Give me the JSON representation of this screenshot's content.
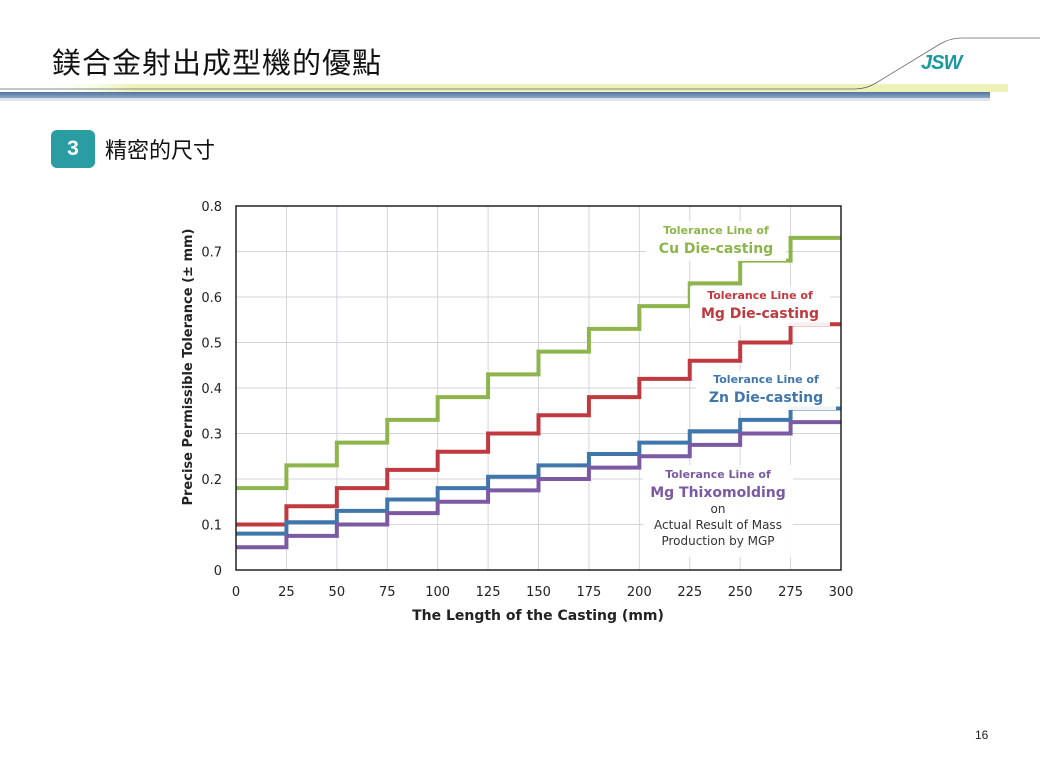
{
  "slide": {
    "title": "鎂合金射出成型機的優點",
    "logo_text": "JSW",
    "section_number": "3",
    "section_label": "精密的尺寸",
    "page_number": "16",
    "colors": {
      "accent": "#2a9da2",
      "header_bar": "#5b7ea8",
      "header_glow": "#eef2b8"
    }
  },
  "chart_data": {
    "type": "line",
    "step": true,
    "title": "",
    "xlabel": "The Length of the Casting (mm)",
    "ylabel": "Precise Permissible Tolerance (± mm)",
    "xlim": [
      0,
      300
    ],
    "ylim": [
      0,
      0.8
    ],
    "grid": true,
    "x_ticks": [
      "0",
      "25",
      "50",
      "75",
      "100",
      "125",
      "150",
      "175",
      "200",
      "225",
      "250",
      "275",
      "300"
    ],
    "y_ticks": [
      "0",
      "0.1",
      "0.2",
      "0.3",
      "0.4",
      "0.5",
      "0.6",
      "0.7",
      "0.8"
    ],
    "x_edges": [
      0,
      25,
      50,
      75,
      100,
      125,
      150,
      175,
      200,
      225,
      250,
      275,
      300
    ],
    "series": [
      {
        "name": "Cu Die-casting",
        "color": "#8db54b",
        "label_lines": [
          "Tolerance Line of",
          "Cu Die-casting"
        ],
        "values": [
          0.18,
          0.23,
          0.28,
          0.33,
          0.38,
          0.43,
          0.48,
          0.53,
          0.58,
          0.63,
          0.68,
          0.73
        ]
      },
      {
        "name": "Mg Die-casting",
        "color": "#c0393f",
        "label_lines": [
          "Tolerance Line of",
          "Mg Die-casting"
        ],
        "values": [
          0.1,
          0.14,
          0.18,
          0.22,
          0.26,
          0.3,
          0.34,
          0.38,
          0.42,
          0.46,
          0.5,
          0.54
        ]
      },
      {
        "name": "Zn Die-casting",
        "color": "#3f77ad",
        "label_lines": [
          "Tolerance Line of",
          "Zn Die-casting"
        ],
        "values": [
          0.08,
          0.105,
          0.13,
          0.155,
          0.18,
          0.205,
          0.23,
          0.255,
          0.28,
          0.305,
          0.33,
          0.355
        ]
      },
      {
        "name": "Mg Thixomolding",
        "color": "#7b5aa3",
        "label_lines": [
          "Tolerance Line of",
          "Mg Thixomolding"
        ],
        "note_lines": [
          "on",
          "Actual Result of Mass",
          "Production by MGP"
        ],
        "values": [
          0.05,
          0.075,
          0.1,
          0.125,
          0.15,
          0.175,
          0.2,
          0.225,
          0.25,
          0.275,
          0.3,
          0.325
        ]
      }
    ]
  }
}
